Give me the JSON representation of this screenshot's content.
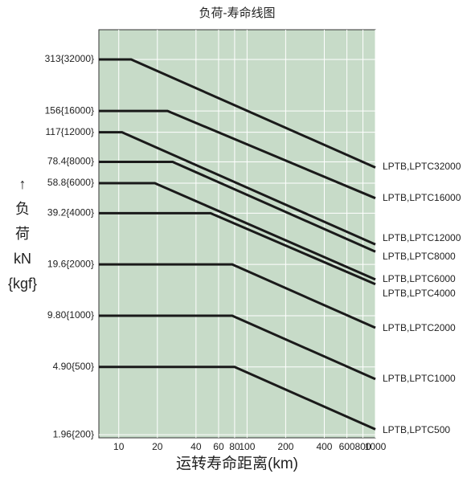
{
  "chart_data": {
    "type": "line",
    "title": "负荷-寿命线图",
    "x_label": "运转寿命距离(km)",
    "y_label": [
      "↑",
      "负",
      "荷",
      "kN",
      "{kgf}"
    ],
    "log_x": true,
    "log_y": true,
    "grid": true,
    "background": "#c7dbc8",
    "line_color": "#1a1a1a",
    "xlim": [
      7,
      1000
    ],
    "ylim": [
      1.88,
      468
    ],
    "xticks": [
      10,
      20,
      40,
      60,
      80,
      100,
      200,
      400,
      600,
      800,
      1000
    ],
    "yticks": [
      {
        "value": 313,
        "label": "313{32000}"
      },
      {
        "value": 156,
        "label": "156{16000}"
      },
      {
        "value": 117,
        "label": "117{12000}"
      },
      {
        "value": 78.4,
        "label": "78.4{8000}"
      },
      {
        "value": 58.8,
        "label": "58.8{6000}"
      },
      {
        "value": 39.2,
        "label": "39.2{4000}"
      },
      {
        "value": 19.6,
        "label": "19.6{2000}"
      },
      {
        "value": 9.8,
        "label": "9.80{1000}"
      },
      {
        "value": 4.9,
        "label": "4.90{500}"
      },
      {
        "value": 1.96,
        "label": "1.96{200}"
      }
    ],
    "series": [
      {
        "name": "LPTB,LPTC32000",
        "x": [
          7,
          12.5,
          1000
        ],
        "values": [
          313,
          313,
          72.7
        ]
      },
      {
        "name": "LPTB,LPTC16000",
        "x": [
          7,
          24,
          1000
        ],
        "values": [
          156,
          156,
          48
        ]
      },
      {
        "name": "LPTB,LPTC12000",
        "x": [
          7,
          10.6,
          1000
        ],
        "values": [
          117,
          117,
          25.7
        ]
      },
      {
        "name": "LPTB,LPTC8000",
        "x": [
          7,
          26.3,
          1000
        ],
        "values": [
          78.4,
          78.4,
          23.3
        ]
      },
      {
        "name": "LPTB,LPTC6000",
        "x": [
          7,
          19.1,
          1000
        ],
        "values": [
          58.8,
          58.8,
          16
        ]
      },
      {
        "name": "LPTB,LPTC4000",
        "x": [
          7,
          51.9,
          1000
        ],
        "values": [
          39.2,
          39.2,
          15
        ]
      },
      {
        "name": "LPTB,LPTC2000",
        "x": [
          7,
          76.6,
          1000
        ],
        "values": [
          19.6,
          19.6,
          8.32
        ]
      },
      {
        "name": "LPTB,LPTC1000",
        "x": [
          7,
          76.6,
          1000
        ],
        "values": [
          9.8,
          9.8,
          4.16
        ]
      },
      {
        "name": "LPTB,LPTC500",
        "x": [
          7,
          80,
          1000
        ],
        "values": [
          4.9,
          4.9,
          2.11
        ]
      }
    ]
  }
}
